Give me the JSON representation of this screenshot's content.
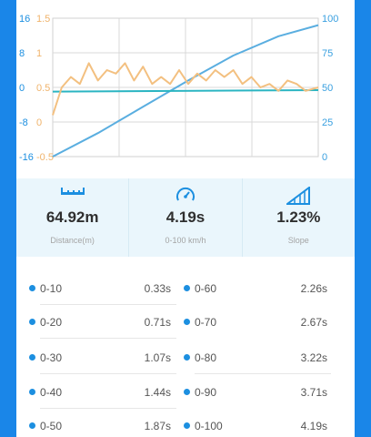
{
  "chart": {
    "left_axis_a": [
      "16",
      "8",
      "0",
      "-8",
      "-16"
    ],
    "left_axis_b": [
      "1.5",
      "1",
      "0.5",
      "0",
      "-0.5"
    ],
    "right_axis": [
      "100",
      "75",
      "50",
      "25",
      "0"
    ]
  },
  "chart_data": {
    "type": "line",
    "series": [
      {
        "color": "#5aaee0",
        "axis": "right",
        "x": [
          0,
          50,
          100,
          150,
          200,
          250,
          294
        ],
        "y": [
          0,
          17,
          36,
          55,
          73,
          87,
          95
        ]
      },
      {
        "color": "#2bb5c2",
        "axis": "right",
        "x": [
          0,
          294
        ],
        "y": [
          47,
          48
        ]
      },
      {
        "color": "#f3c080",
        "axis": "left",
        "x": [
          0,
          10,
          20,
          30,
          40,
          50,
          60,
          70,
          80,
          90,
          100,
          110,
          120,
          130,
          140,
          150,
          160,
          170,
          180,
          190,
          200,
          210,
          220,
          230,
          240,
          250,
          260,
          270,
          280,
          294
        ],
        "y": [
          0.1,
          0.5,
          0.65,
          0.55,
          0.85,
          0.6,
          0.75,
          0.7,
          0.85,
          0.6,
          0.8,
          0.55,
          0.65,
          0.55,
          0.75,
          0.55,
          0.7,
          0.6,
          0.75,
          0.65,
          0.75,
          0.55,
          0.65,
          0.5,
          0.55,
          0.45,
          0.6,
          0.55,
          0.45,
          0.5
        ]
      }
    ],
    "left_ylim_a": [
      -16,
      16
    ],
    "left_ylim_b": [
      -0.5,
      1.5
    ],
    "right_ylim": [
      0,
      100
    ],
    "grid": true
  },
  "stats": [
    {
      "value": "64.92m",
      "label": "Distance(m)",
      "icon": "ruler-icon"
    },
    {
      "value": "4.19s",
      "label": "0-100 km/h",
      "icon": "speedometer-icon"
    },
    {
      "value": "1.23%",
      "label": "Slope",
      "icon": "slope-icon"
    }
  ],
  "times": [
    {
      "left_range": "0-10",
      "left_time": "0.33s",
      "right_range": "0-60",
      "right_time": "2.26s"
    },
    {
      "left_range": "0-20",
      "left_time": "0.71s",
      "right_range": "0-70",
      "right_time": "2.67s"
    },
    {
      "left_range": "0-30",
      "left_time": "1.07s",
      "right_range": "0-80",
      "right_time": "3.22s"
    },
    {
      "left_range": "0-40",
      "left_time": "1.44s",
      "right_range": "0-90",
      "right_time": "3.71s"
    },
    {
      "left_range": "0-50",
      "left_time": "1.87s",
      "right_range": "0-100",
      "right_time": "4.19s"
    }
  ],
  "colors": {
    "accent": "#1a86e8",
    "dot": "#1c8fe0",
    "stats_bg": "#eaf6fc"
  }
}
